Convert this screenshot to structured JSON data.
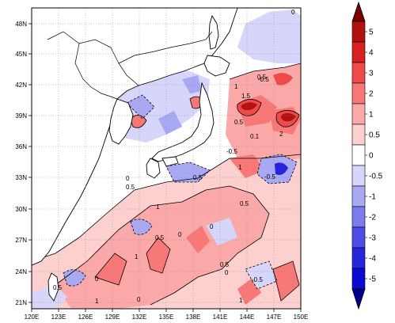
{
  "map": {
    "lon_ticks": [
      "120E",
      "123E",
      "126E",
      "129E",
      "132E",
      "135E",
      "138E",
      "141E",
      "144E",
      "147E",
      "150E"
    ],
    "lat_ticks": [
      "48N",
      "45N",
      "42N",
      "39N",
      "36N",
      "33N",
      "30N",
      "27N",
      "24N",
      "21N"
    ],
    "contour_labels": [
      "-0.5",
      "0",
      "0.5",
      "1",
      "1.5",
      "2",
      "0.1",
      "-0.5",
      "0.5",
      "1",
      "0.5",
      "0",
      "0.5",
      "-0.5",
      "0.5",
      "0",
      "1",
      "1",
      "0.5",
      "0.5",
      "0",
      "-0.5",
      "0",
      "0",
      "1",
      "0.5",
      "0",
      "1"
    ]
  },
  "colorbar": {
    "labels": [
      "5",
      "4",
      "3",
      "2",
      "1",
      "0.5",
      "0",
      "-0.5",
      "-1",
      "-2",
      "-3",
      "-4",
      "-5"
    ],
    "colors": [
      "#b31010",
      "#d82020",
      "#ef4a4a",
      "#f87878",
      "#fba8a8",
      "#fdd0d0",
      "#ffffff",
      "#d6d6fb",
      "#a9a9f3",
      "#7b7bee",
      "#4c4ce6",
      "#2525dc",
      "#0a0ad0"
    ]
  }
}
